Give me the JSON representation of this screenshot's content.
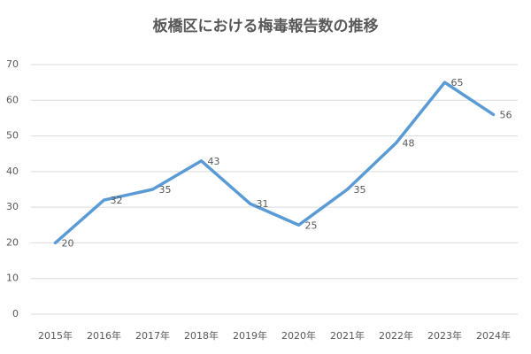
{
  "chart_data": {
    "type": "line",
    "title": "板橋区における梅毒報告数の推移",
    "categories": [
      "2015年",
      "2016年",
      "2017年",
      "2018年",
      "2019年",
      "2020年",
      "2021年",
      "2022年",
      "2023年",
      "2024年"
    ],
    "values": [
      20,
      32,
      35,
      43,
      31,
      25,
      35,
      48,
      65,
      56
    ],
    "color": "#5b9bd5",
    "ylim": [
      0,
      70
    ],
    "yticks": [
      0,
      10,
      20,
      30,
      40,
      50,
      60,
      70
    ],
    "grid": true
  }
}
